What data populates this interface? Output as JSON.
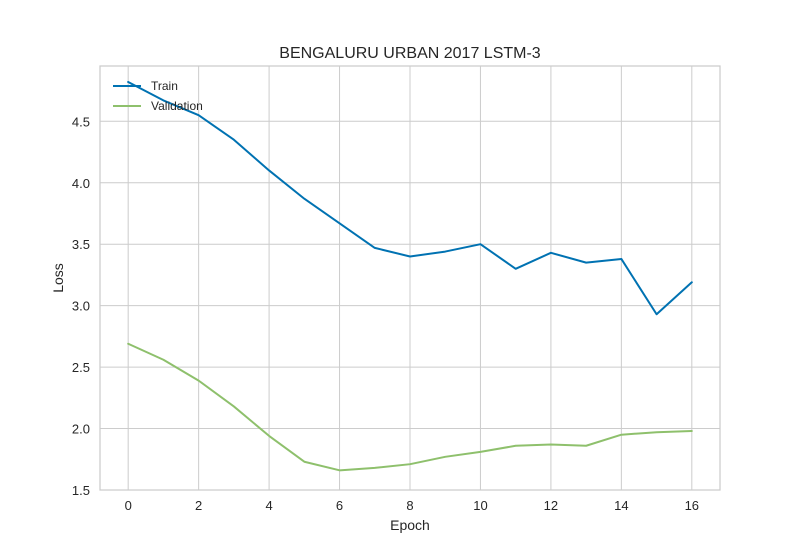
{
  "chart_data": {
    "type": "line",
    "title": "BENGALURU URBAN 2017 LSTM-3",
    "xlabel": "Epoch",
    "ylabel": "Loss",
    "xlim": [
      -0.8,
      16.8
    ],
    "ylim": [
      1.5,
      4.95
    ],
    "xticks": [
      0,
      2,
      4,
      6,
      8,
      10,
      12,
      14,
      16
    ],
    "xtick_labels": [
      "0",
      "2",
      "4",
      "6",
      "8",
      "10",
      "12",
      "14",
      "16"
    ],
    "yticks": [
      1.5,
      2.0,
      2.5,
      3.0,
      3.5,
      4.0,
      4.5
    ],
    "ytick_labels": [
      "1.5",
      "2.0",
      "2.5",
      "3.0",
      "3.5",
      "4.0",
      "4.5"
    ],
    "grid": true,
    "legend_position": "top-left",
    "x": [
      0,
      1,
      2,
      3,
      4,
      5,
      6,
      7,
      8,
      9,
      10,
      11,
      12,
      13,
      14,
      15,
      16
    ],
    "series": [
      {
        "name": "Train",
        "color": "#0072b2",
        "values": [
          4.82,
          4.67,
          4.55,
          4.35,
          4.1,
          3.87,
          3.67,
          3.47,
          3.4,
          3.44,
          3.5,
          3.3,
          3.43,
          3.35,
          3.38,
          2.93,
          3.19
        ]
      },
      {
        "name": "Validation",
        "color": "#8ec06c",
        "values": [
          2.69,
          2.56,
          2.39,
          2.18,
          1.94,
          1.73,
          1.66,
          1.68,
          1.71,
          1.77,
          1.81,
          1.86,
          1.87,
          1.86,
          1.95,
          1.97,
          1.98
        ]
      }
    ]
  }
}
